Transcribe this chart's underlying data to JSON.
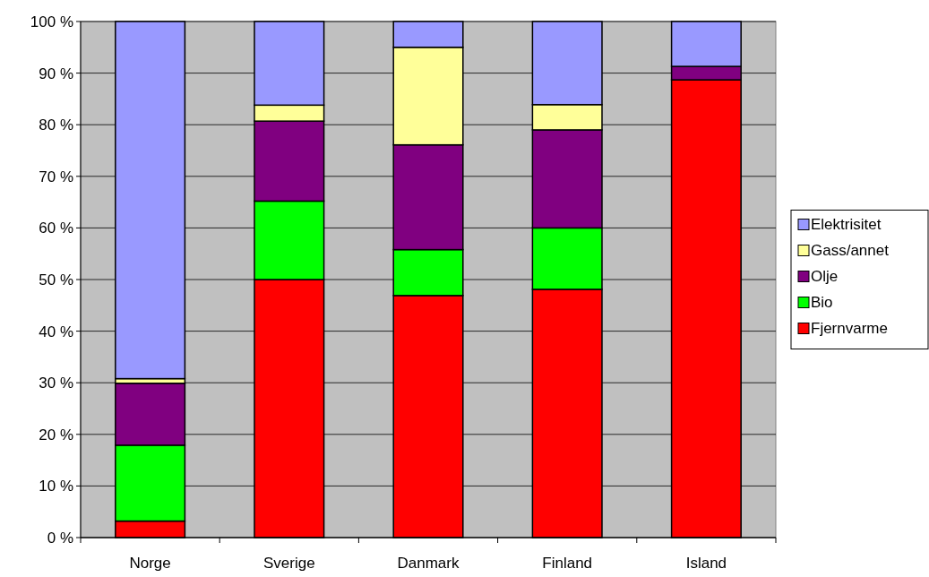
{
  "chart_data": {
    "type": "bar",
    "stacked": true,
    "categories": [
      "Norge",
      "Sverige",
      "Danmark",
      "Finland",
      "Island"
    ],
    "series": [
      {
        "name": "Fjernvarme",
        "color": "#ff0000",
        "values": [
          3.2,
          50,
          46.9,
          48.1,
          88.7
        ]
      },
      {
        "name": "Bio",
        "color": "#00ff00",
        "values": [
          14.7,
          15.2,
          8.9,
          11.9,
          0
        ]
      },
      {
        "name": "Olje",
        "color": "#800080",
        "values": [
          12,
          15.5,
          20.3,
          19,
          2.6
        ]
      },
      {
        "name": "Gass/annet",
        "color": "#ffff99",
        "values": [
          0.9,
          3.1,
          18.9,
          4.9,
          0
        ]
      },
      {
        "name": "Elektrisitet",
        "color": "#9999ff",
        "values": [
          69.2,
          16.2,
          5,
          16.1,
          8.7
        ]
      }
    ],
    "ylim": [
      0,
      100
    ],
    "yticks": [
      {
        "value": 0,
        "label": "0 %"
      },
      {
        "value": 10,
        "label": "10 %"
      },
      {
        "value": 20,
        "label": "20 %"
      },
      {
        "value": 30,
        "label": "30 %"
      },
      {
        "value": 40,
        "label": "40 %"
      },
      {
        "value": 50,
        "label": "50 %"
      },
      {
        "value": 60,
        "label": "60 %"
      },
      {
        "value": 70,
        "label": "70 %"
      },
      {
        "value": 80,
        "label": "80 %"
      },
      {
        "value": 90,
        "label": "90 %"
      },
      {
        "value": 100,
        "label": "100 %"
      }
    ],
    "grid": "y",
    "legend": "right"
  }
}
